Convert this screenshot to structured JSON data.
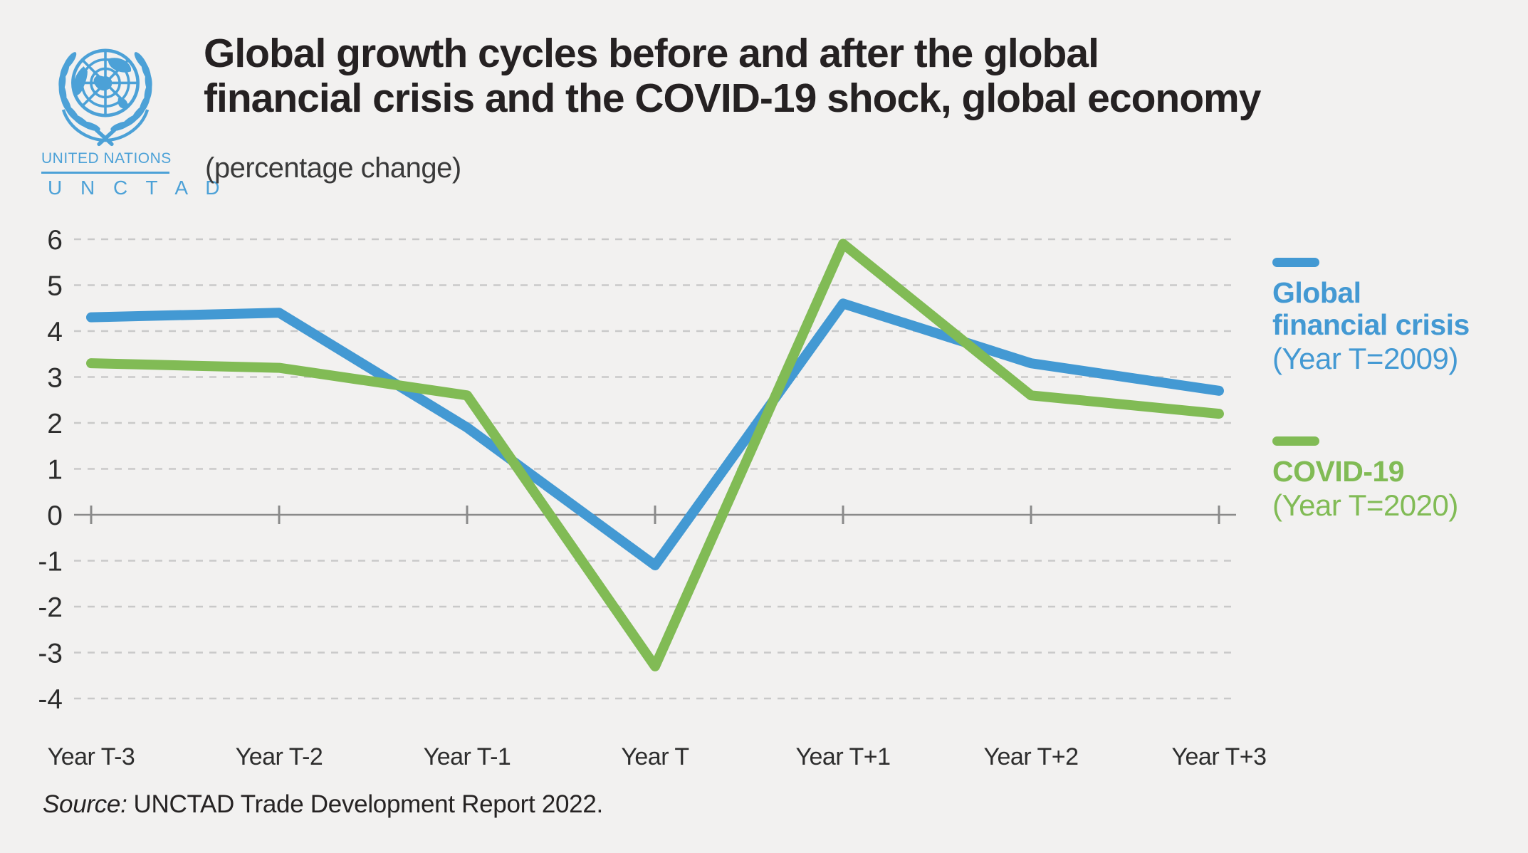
{
  "header": {
    "logo": {
      "org": "UNITED NATIONS",
      "division": "U N C T A D"
    },
    "title_display": "Global growth cycles before and after the global\nfinancial crisis and the COVID-19 shock, global economy",
    "subtitle": "(percentage change)"
  },
  "chart_data": {
    "type": "line",
    "title": "Global growth cycles before and after the global financial crisis and the COVID-19 shock, global economy",
    "subtitle": "(percentage change)",
    "categories": [
      "Year T-3",
      "Year T-2",
      "Year T-1",
      "Year T",
      "Year T+1",
      "Year T+2",
      "Year T+3"
    ],
    "series": [
      {
        "name": "Global financial crisis",
        "name_display": "Global\nfinancial crisis",
        "sub": "(Year T=2009)",
        "color": "#4399d3",
        "values": [
          4.3,
          4.4,
          1.9,
          -1.1,
          4.6,
          3.3,
          2.7
        ]
      },
      {
        "name": "COVID-19",
        "name_display": "COVID-19",
        "sub": "(Year T=2020)",
        "color": "#81bb55",
        "values": [
          3.3,
          3.2,
          2.6,
          -3.3,
          5.9,
          2.6,
          2.2
        ]
      }
    ],
    "ylim": [
      -4,
      6
    ],
    "ytick_step": 1,
    "xlabel": "",
    "ylabel": "",
    "grid": "horizontal-dashed",
    "zero_axis": "solid-with-ticks",
    "legend_position": "right"
  },
  "source": {
    "prefix": "Source:",
    "text": "UNCTAD Trade Development Report 2022."
  },
  "colors": {
    "background": "#f2f1f0",
    "un_blue": "#4ca1d7",
    "gridline": "#c9c9c9",
    "zero_axis": "#8a8a8a",
    "title_text": "#252122"
  }
}
